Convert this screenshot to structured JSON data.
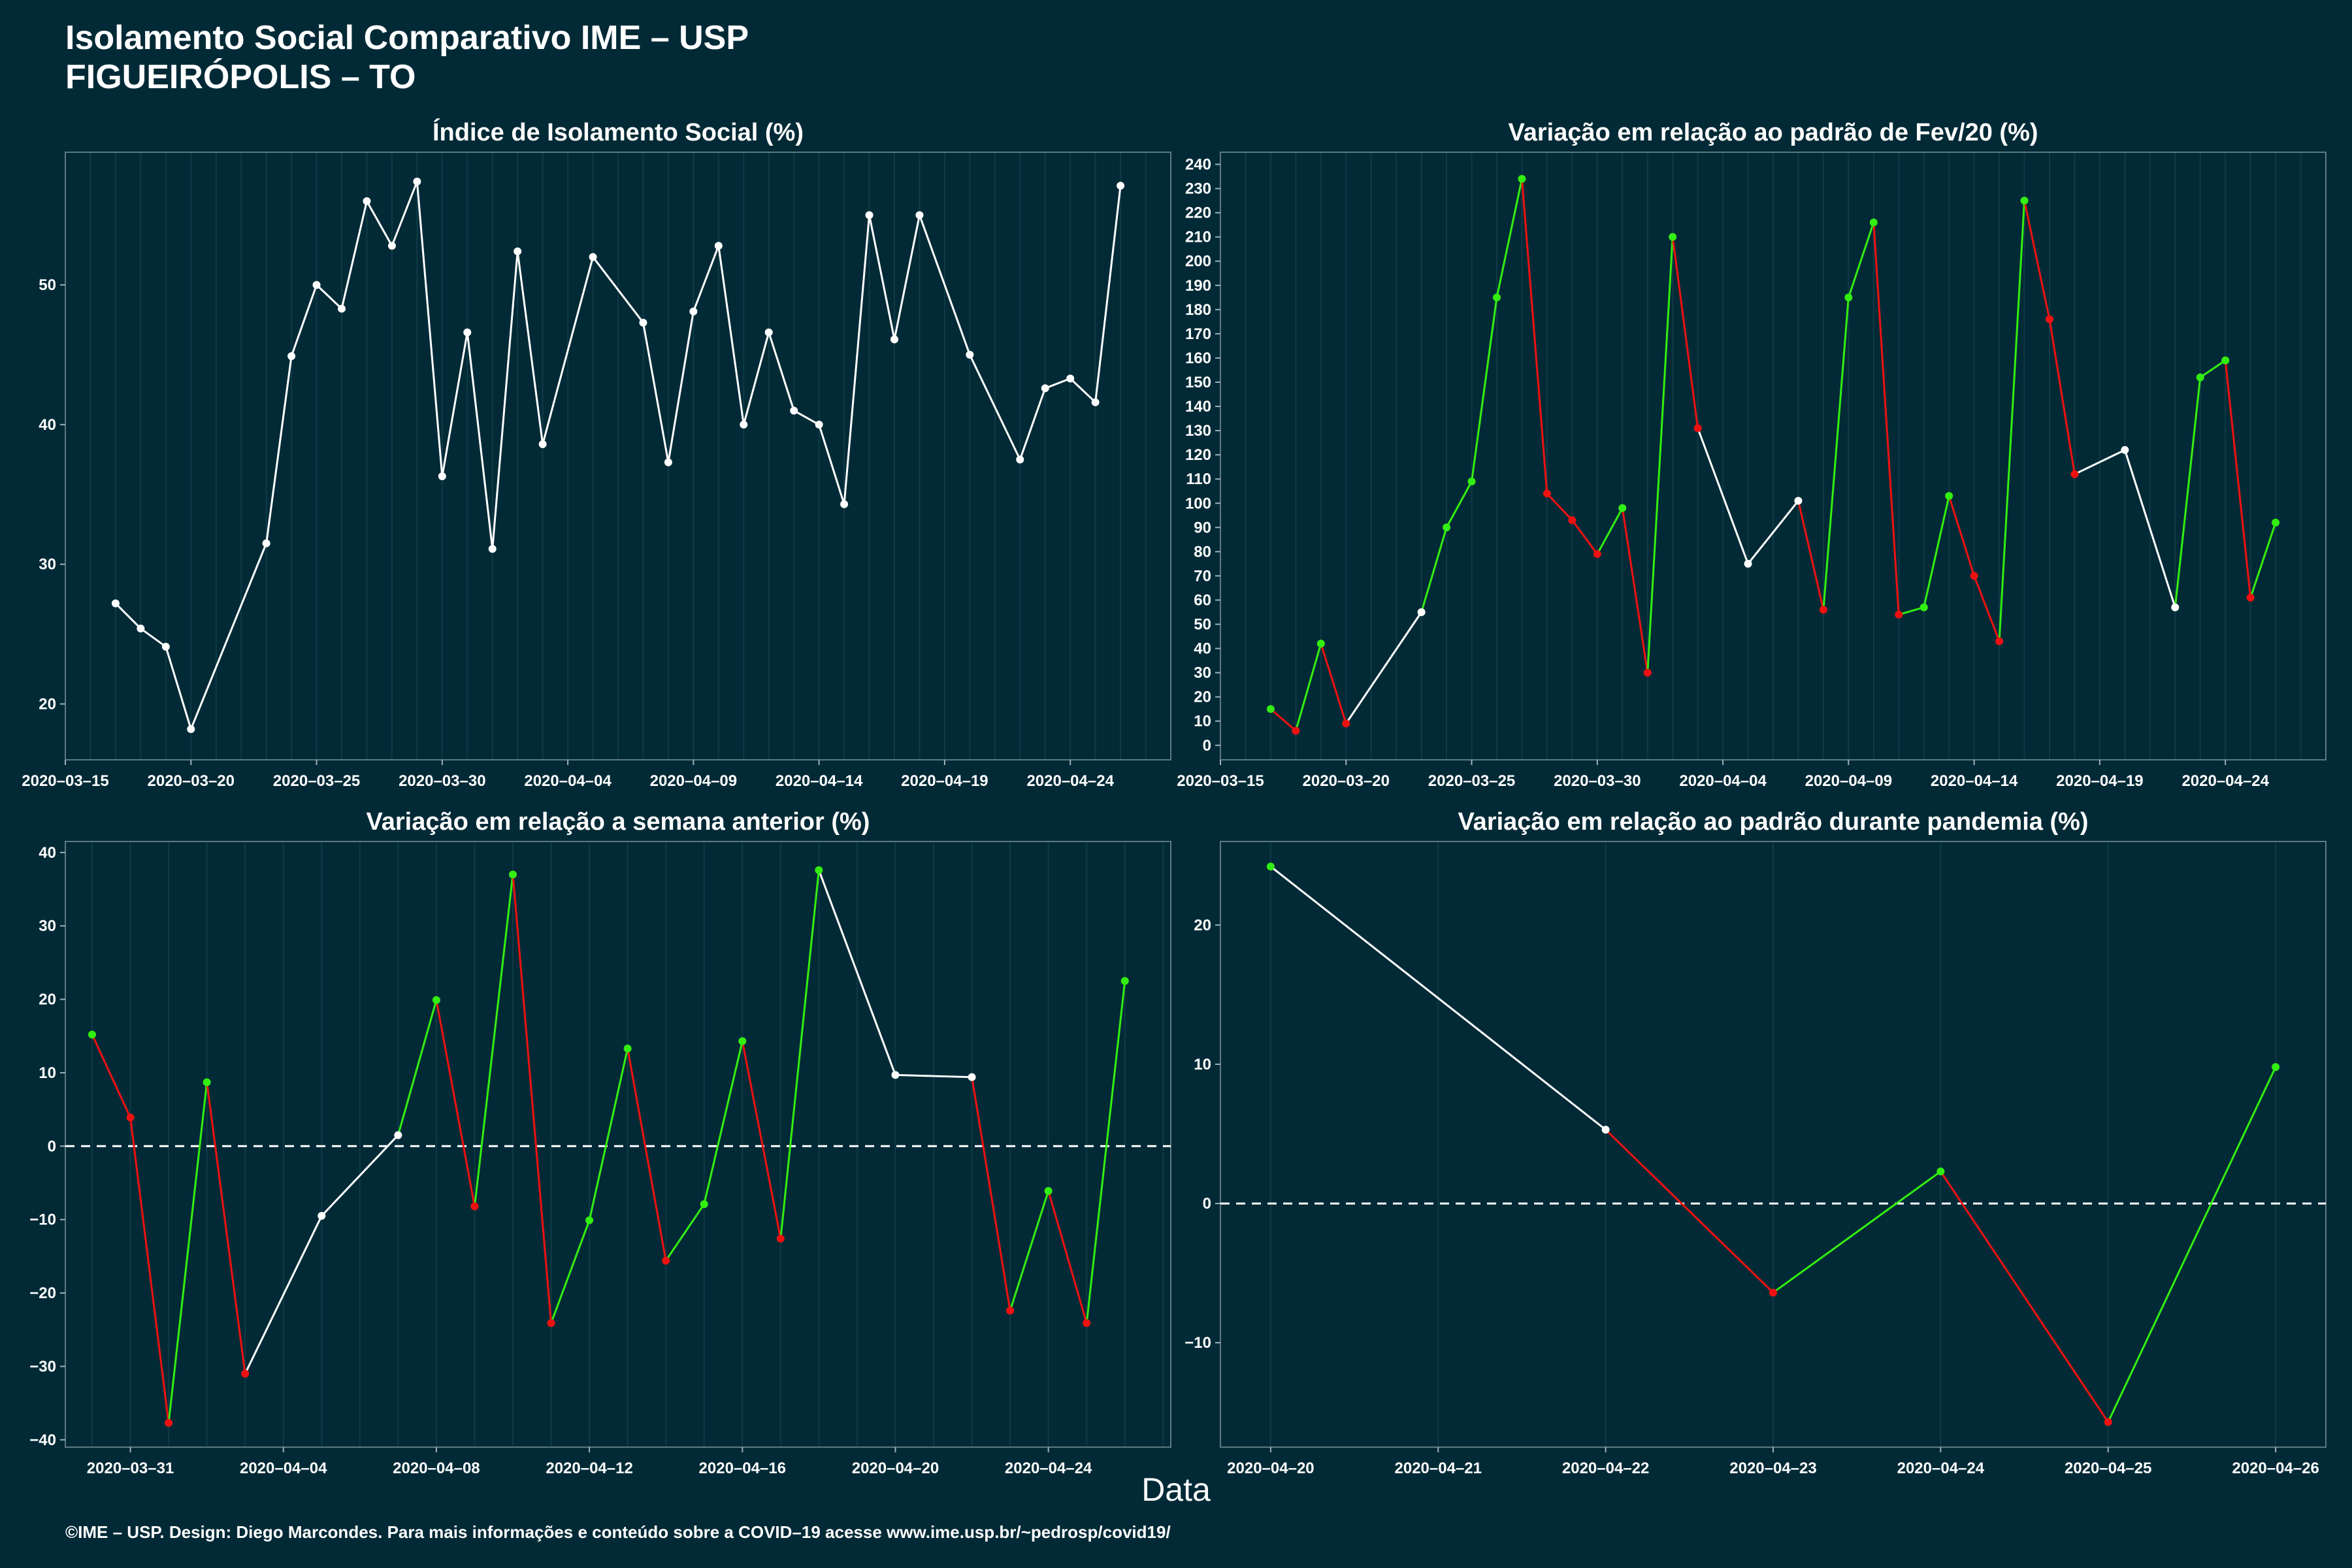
{
  "title_line1": "Isolamento Social Comparativo IME – USP",
  "title_line2": "FIGUEIRÓPOLIS – TO",
  "x_axis_title": "Data",
  "footer": "©IME – USP. Design: Diego Marcondes. Para mais informações e conteúdo sobre a COVID–19 acesse www.ime.usp.br/~pedrosp/covid19/",
  "colors": {
    "background": "#022a36",
    "text": "#ffffff",
    "line_neutral": "#ffffff",
    "increase": "#33ee11",
    "decrease": "#ee1111"
  },
  "chart_data": [
    {
      "id": "isolamento",
      "type": "line",
      "title": "Índice de Isolamento Social (%)",
      "color_mode": "neutral",
      "xlim": [
        "2020-03-15",
        "2020-04-28"
      ],
      "ylim": [
        16,
        59.5
      ],
      "yticks": [
        20,
        30,
        40,
        50
      ],
      "xticks": [
        "2020-03-15",
        "2020-03-20",
        "2020-03-25",
        "2020-03-30",
        "2020-04-04",
        "2020-04-09",
        "2020-04-14",
        "2020-04-19",
        "2020-04-24"
      ],
      "grid": "vertical",
      "points": [
        [
          "2020-03-17",
          27.2
        ],
        [
          "2020-03-18",
          25.4
        ],
        [
          "2020-03-19",
          24.1
        ],
        [
          "2020-03-20",
          18.2
        ],
        [
          "2020-03-23",
          31.5
        ],
        [
          "2020-03-24",
          44.9
        ],
        [
          "2020-03-25",
          50.0
        ],
        [
          "2020-03-26",
          48.3
        ],
        [
          "2020-03-27",
          56.0
        ],
        [
          "2020-03-28",
          52.8
        ],
        [
          "2020-03-29",
          57.4
        ],
        [
          "2020-03-30",
          36.3
        ],
        [
          "2020-03-31",
          46.6
        ],
        [
          "2020-04-01",
          31.1
        ],
        [
          "2020-04-02",
          52.4
        ],
        [
          "2020-04-03",
          38.6
        ],
        [
          "2020-04-05",
          52.0
        ],
        [
          "2020-04-07",
          47.3
        ],
        [
          "2020-04-08",
          37.3
        ],
        [
          "2020-04-09",
          48.1
        ],
        [
          "2020-04-10",
          52.8
        ],
        [
          "2020-04-11",
          40.0
        ],
        [
          "2020-04-12",
          46.6
        ],
        [
          "2020-04-13",
          41.0
        ],
        [
          "2020-04-14",
          40.0
        ],
        [
          "2020-04-15",
          34.3
        ],
        [
          "2020-04-16",
          55.0
        ],
        [
          "2020-04-17",
          46.1
        ],
        [
          "2020-04-18",
          55.0
        ],
        [
          "2020-04-20",
          45.0
        ],
        [
          "2020-04-22",
          37.5
        ],
        [
          "2020-04-23",
          42.6
        ],
        [
          "2020-04-24",
          43.3
        ],
        [
          "2020-04-25",
          41.6
        ],
        [
          "2020-04-26",
          57.1
        ]
      ]
    },
    {
      "id": "fev20",
      "type": "line",
      "title": "Variação em relação ao padrão de Fev/20 (%)",
      "color_mode": "trend",
      "xlim": [
        "2020-03-15",
        "2020-04-28"
      ],
      "ylim": [
        -6,
        245
      ],
      "yticks": [
        0,
        10,
        20,
        30,
        40,
        50,
        60,
        70,
        80,
        90,
        100,
        110,
        120,
        130,
        140,
        150,
        160,
        170,
        180,
        190,
        200,
        210,
        220,
        230,
        240
      ],
      "xticks": [
        "2020-03-15",
        "2020-03-20",
        "2020-03-25",
        "2020-03-30",
        "2020-04-04",
        "2020-04-09",
        "2020-04-14",
        "2020-04-19",
        "2020-04-24"
      ],
      "grid": "vertical",
      "points": [
        [
          "2020-03-17",
          15
        ],
        [
          "2020-03-18",
          6
        ],
        [
          "2020-03-19",
          42
        ],
        [
          "2020-03-20",
          9
        ],
        [
          "2020-03-23",
          55
        ],
        [
          "2020-03-24",
          90
        ],
        [
          "2020-03-25",
          109
        ],
        [
          "2020-03-26",
          185
        ],
        [
          "2020-03-27",
          234
        ],
        [
          "2020-03-28",
          104
        ],
        [
          "2020-03-29",
          93
        ],
        [
          "2020-03-30",
          79
        ],
        [
          "2020-03-31",
          98
        ],
        [
          "2020-04-01",
          30
        ],
        [
          "2020-04-02",
          210
        ],
        [
          "2020-04-03",
          131
        ],
        [
          "2020-04-05",
          75
        ],
        [
          "2020-04-07",
          101
        ],
        [
          "2020-04-08",
          56
        ],
        [
          "2020-04-09",
          185
        ],
        [
          "2020-04-10",
          216
        ],
        [
          "2020-04-11",
          54
        ],
        [
          "2020-04-12",
          57
        ],
        [
          "2020-04-13",
          103
        ],
        [
          "2020-04-14",
          70
        ],
        [
          "2020-04-15",
          43
        ],
        [
          "2020-04-16",
          225
        ],
        [
          "2020-04-17",
          176
        ],
        [
          "2020-04-18",
          112
        ],
        [
          "2020-04-20",
          122
        ],
        [
          "2020-04-22",
          57
        ],
        [
          "2020-04-23",
          152
        ],
        [
          "2020-04-24",
          159
        ],
        [
          "2020-04-25",
          61
        ],
        [
          "2020-04-26",
          92
        ]
      ]
    },
    {
      "id": "semana",
      "type": "line",
      "title": "Variação em relação a semana anterior (%)",
      "color_mode": "trend",
      "zero_line": true,
      "xlim": [
        "2020-03-29.3",
        "2020-04-27.2"
      ],
      "ylim": [
        -41,
        41.5
      ],
      "yticks": [
        -40,
        -30,
        -20,
        -10,
        0,
        10,
        20,
        30,
        40
      ],
      "xticks": [
        "2020-03-31",
        "2020-04-04",
        "2020-04-08",
        "2020-04-12",
        "2020-04-16",
        "2020-04-20",
        "2020-04-24"
      ],
      "grid": "vertical",
      "points": [
        [
          "2020-03-30",
          15.2
        ],
        [
          "2020-03-31",
          3.9
        ],
        [
          "2020-04-01",
          -37.7
        ],
        [
          "2020-04-02",
          8.7
        ],
        [
          "2020-04-03",
          -31.0
        ],
        [
          "2020-04-05",
          -9.5
        ],
        [
          "2020-04-07",
          1.5
        ],
        [
          "2020-04-08",
          19.9
        ],
        [
          "2020-04-09",
          -8.2
        ],
        [
          "2020-04-10",
          37.0
        ],
        [
          "2020-04-11",
          -24.1
        ],
        [
          "2020-04-12",
          -10.1
        ],
        [
          "2020-04-13",
          13.3
        ],
        [
          "2020-04-14",
          -15.6
        ],
        [
          "2020-04-15",
          -7.9
        ],
        [
          "2020-04-16",
          14.3
        ],
        [
          "2020-04-17",
          -12.6
        ],
        [
          "2020-04-18",
          37.6
        ],
        [
          "2020-04-20",
          9.7
        ],
        [
          "2020-04-22",
          9.4
        ],
        [
          "2020-04-23",
          -22.4
        ],
        [
          "2020-04-24",
          -6.1
        ],
        [
          "2020-04-25",
          -24.1
        ],
        [
          "2020-04-26",
          22.5
        ]
      ]
    },
    {
      "id": "pandemia",
      "type": "line",
      "title": "Variação em relação ao padrão durante pandemia (%)",
      "color_mode": "trend",
      "zero_line": true,
      "xlim": [
        "2020-04-19.7",
        "2020-04-26.3"
      ],
      "ylim": [
        -17.5,
        26
      ],
      "yticks": [
        -10,
        0,
        10,
        20
      ],
      "xticks": [
        "2020-04-20",
        "2020-04-21",
        "2020-04-22",
        "2020-04-23",
        "2020-04-24",
        "2020-04-25",
        "2020-04-26"
      ],
      "grid": "vertical",
      "points": [
        [
          "2020-04-20",
          24.2
        ],
        [
          "2020-04-22",
          5.3
        ],
        [
          "2020-04-23",
          -6.4
        ],
        [
          "2020-04-24",
          2.3
        ],
        [
          "2020-04-25",
          -15.7
        ],
        [
          "2020-04-26",
          9.8
        ]
      ]
    }
  ]
}
